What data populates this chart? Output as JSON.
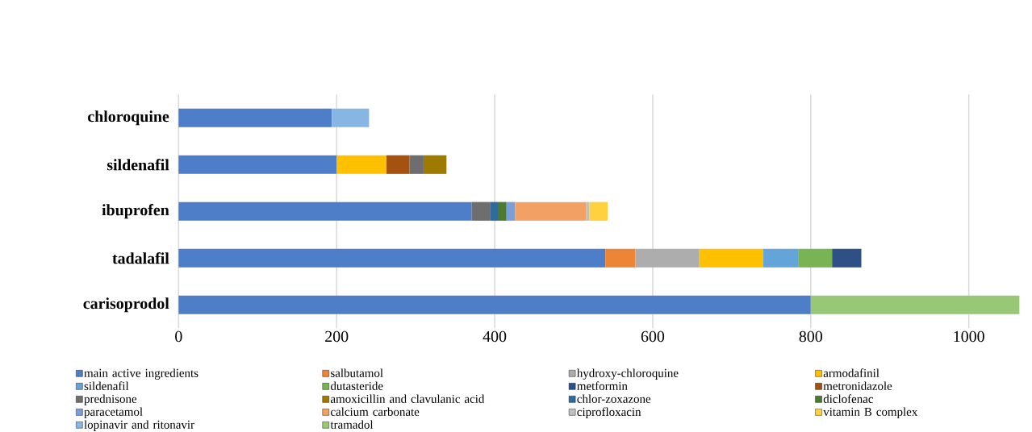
{
  "chart_data": {
    "type": "bar",
    "orientation": "horizontal",
    "stacked": true,
    "grid": "x",
    "legend": "bottom",
    "categories": [
      "chloroquine",
      "sildenafil",
      "ibuprofen",
      "tadalafil",
      "carisoprodol"
    ],
    "xlim": [
      0,
      1065
    ],
    "xticks": [
      0,
      200,
      400,
      600,
      800,
      1000
    ],
    "series": [
      {
        "name": "main active ingredients",
        "color": "#4f7ec9",
        "values": [
          194,
          200,
          371,
          540,
          800
        ]
      },
      {
        "name": "salbutamol",
        "color": "#ed8536",
        "values": [
          null,
          null,
          null,
          38,
          null
        ]
      },
      {
        "name": "hydroxy-chloroquine",
        "color": "#adadad",
        "values": [
          null,
          null,
          null,
          81,
          null
        ]
      },
      {
        "name": "armodafinil",
        "color": "#ffc000",
        "values": [
          null,
          63,
          null,
          81,
          null
        ]
      },
      {
        "name": "sildenafil",
        "color": "#64a5d9",
        "values": [
          null,
          null,
          null,
          44,
          null
        ]
      },
      {
        "name": "dutasteride",
        "color": "#7ab353",
        "values": [
          null,
          null,
          null,
          43,
          null
        ]
      },
      {
        "name": "metformin",
        "color": "#2e5085",
        "values": [
          null,
          null,
          null,
          37,
          null
        ]
      },
      {
        "name": "metronidazole",
        "color": "#a5510f",
        "values": [
          null,
          29,
          null,
          null,
          null
        ]
      },
      {
        "name": "prednisone",
        "color": "#6e6e6e",
        "values": [
          null,
          18,
          23,
          null,
          null
        ]
      },
      {
        "name": "amoxicillin and clavulanic acid",
        "color": "#9e7b00",
        "values": [
          null,
          29,
          null,
          null,
          null
        ]
      },
      {
        "name": "chlor-zoxazone",
        "color": "#2e6ca0",
        "values": [
          null,
          null,
          11,
          null,
          null
        ]
      },
      {
        "name": "diclofenac",
        "color": "#4e7a2f",
        "values": [
          null,
          null,
          10,
          null,
          null
        ]
      },
      {
        "name": "paracetamol",
        "color": "#7a9ed9",
        "values": [
          null,
          null,
          11,
          null,
          null
        ]
      },
      {
        "name": "calcium carbonate",
        "color": "#f2a063",
        "values": [
          null,
          null,
          90,
          null,
          null
        ]
      },
      {
        "name": "ciprofloxacin",
        "color": "#c0c0c0",
        "values": [
          null,
          null,
          4,
          null,
          null
        ]
      },
      {
        "name": "vitamin B complex",
        "color": "#ffd13f",
        "values": [
          null,
          null,
          23,
          null,
          null
        ]
      },
      {
        "name": "lopinavir and ritonavir",
        "color": "#88b6e2",
        "values": [
          47,
          null,
          null,
          null,
          null
        ]
      },
      {
        "name": "tramadol",
        "color": "#98c775",
        "values": [
          null,
          null,
          null,
          null,
          264
        ]
      }
    ]
  }
}
